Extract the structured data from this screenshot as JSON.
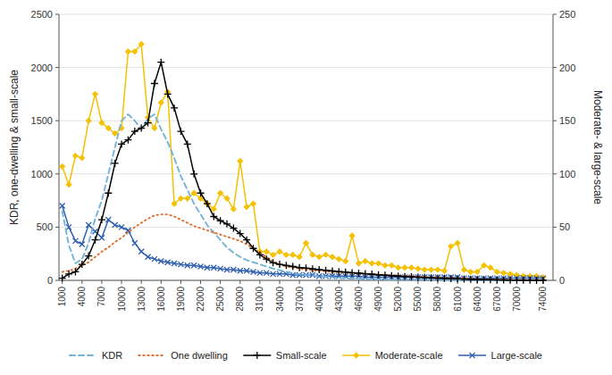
{
  "chart_data": {
    "type": "line",
    "ylabel": "KDR, one-dwelling & small-scale",
    "y2label": "Moderate- & large-scale",
    "x": [
      1000,
      2000,
      3000,
      4000,
      5000,
      6000,
      7000,
      8000,
      9000,
      10000,
      11000,
      12000,
      13000,
      14000,
      15000,
      16000,
      17000,
      18000,
      19000,
      20000,
      21000,
      22000,
      23000,
      24000,
      25000,
      26000,
      27000,
      28000,
      29000,
      30000,
      31000,
      32000,
      33000,
      34000,
      35000,
      36000,
      37000,
      38000,
      39000,
      40000,
      41000,
      42000,
      43000,
      44000,
      45000,
      46000,
      47000,
      48000,
      49000,
      50000,
      51000,
      52000,
      53000,
      54000,
      55000,
      56000,
      57000,
      58000,
      59000,
      60000,
      61000,
      62000,
      63000,
      64000,
      65000,
      66000,
      67000,
      68000,
      69000,
      70000,
      71000,
      72000,
      73000,
      74000
    ],
    "xlim": [
      500,
      75500
    ],
    "xticks": [
      1000,
      4000,
      7000,
      10000,
      13000,
      16000,
      19000,
      22000,
      25000,
      28000,
      31000,
      34000,
      37000,
      40000,
      43000,
      46000,
      49000,
      52000,
      55000,
      58000,
      61000,
      64000,
      67000,
      70000,
      74000
    ],
    "ylim": [
      0,
      2500
    ],
    "yticks": [
      0,
      500,
      1000,
      1500,
      2000,
      2500
    ],
    "y2lim": [
      0,
      250
    ],
    "y2ticks": [
      0,
      50,
      100,
      150,
      200,
      250
    ],
    "grid": true,
    "legend": "bottom",
    "series": [
      {
        "name": "KDR",
        "color": "#74b3d8",
        "line_style": "dashed",
        "values": [
          650,
          330,
          160,
          200,
          350,
          580,
          750,
          1000,
          1250,
          1500,
          1560,
          1500,
          1420,
          1520,
          1560,
          1420,
          1300,
          1150,
          980,
          850,
          720,
          620,
          520,
          450,
          380,
          310,
          260,
          220,
          190,
          170,
          150,
          130,
          110,
          95,
          80,
          68,
          58,
          50,
          44,
          38,
          33,
          28,
          24,
          20,
          17,
          15,
          13,
          11,
          10,
          8,
          7,
          6,
          5,
          5,
          4,
          4,
          3,
          3,
          2,
          2,
          2,
          1,
          1,
          1,
          1,
          1,
          0,
          0,
          0,
          0,
          0,
          0,
          0,
          0
        ]
      },
      {
        "name": "One dwelling",
        "color": "#e07030",
        "line_style": "dotted",
        "values": [
          80,
          90,
          110,
          140,
          170,
          220,
          270,
          310,
          360,
          400,
          450,
          500,
          540,
          580,
          610,
          620,
          620,
          600,
          570,
          540,
          510,
          490,
          470,
          450,
          430,
          410,
          390,
          370,
          340,
          300,
          260,
          220,
          180,
          150,
          130,
          120,
          110,
          100,
          95,
          90,
          85,
          80,
          75,
          72,
          68,
          65,
          62,
          58,
          55,
          52,
          48,
          45,
          42,
          39,
          36,
          33,
          30,
          28,
          25,
          22,
          20,
          18,
          15,
          13,
          11,
          9,
          8,
          7,
          6,
          5,
          4,
          3,
          3,
          2
        ]
      },
      {
        "name": "Small-scale",
        "color": "#000000",
        "line_style": "solid",
        "marker": "plus",
        "values": [
          20,
          60,
          80,
          150,
          230,
          380,
          570,
          820,
          1100,
          1280,
          1320,
          1400,
          1430,
          1480,
          1850,
          2050,
          1750,
          1620,
          1400,
          1280,
          1000,
          820,
          720,
          600,
          560,
          530,
          490,
          440,
          380,
          300,
          240,
          200,
          165,
          150,
          140,
          130,
          120,
          115,
          108,
          100,
          95,
          88,
          82,
          78,
          72,
          68,
          62,
          58,
          52,
          48,
          44,
          40,
          36,
          33,
          30,
          27,
          24,
          21,
          18,
          16,
          14,
          12,
          10,
          8,
          7,
          6,
          5,
          4,
          3,
          3,
          2,
          2,
          1,
          1
        ]
      },
      {
        "name": "Moderate-scale",
        "color": "#f5c000",
        "line_style": "solid",
        "marker": "diamond",
        "axis": "y2",
        "values": [
          107,
          90,
          117,
          115,
          150,
          175,
          148,
          143,
          138,
          143,
          215,
          215,
          222,
          153,
          143,
          167,
          177,
          72,
          77,
          77,
          82,
          77,
          72,
          67,
          82,
          77,
          67,
          112,
          69,
          72,
          27,
          27,
          24,
          27,
          24,
          24,
          22,
          35,
          24,
          22,
          24,
          22,
          20,
          18,
          42,
          16,
          18,
          16,
          16,
          14,
          14,
          12,
          12,
          12,
          11,
          10,
          10,
          10,
          9,
          32,
          35,
          10,
          8,
          8,
          14,
          12,
          8,
          7,
          6,
          5,
          4,
          4,
          4,
          3
        ]
      },
      {
        "name": "Large-scale",
        "color": "#3060b0",
        "line_style": "solid",
        "marker": "x",
        "axis": "y2",
        "values": [
          70,
          50,
          37,
          34,
          52,
          46,
          40,
          57,
          52,
          50,
          47,
          35,
          27,
          22,
          20,
          18,
          17,
          16,
          15,
          14,
          14,
          13,
          12,
          12,
          11,
          10,
          10,
          9,
          9,
          8,
          7,
          7,
          6,
          6,
          6,
          5,
          5,
          5,
          5,
          4,
          4,
          4,
          4,
          4,
          4,
          4,
          3,
          3,
          3,
          3,
          3,
          3,
          3,
          3,
          3,
          3,
          3,
          3,
          3,
          3,
          3,
          2,
          2,
          2,
          2,
          2,
          2,
          2,
          2,
          2,
          2,
          2,
          2,
          2
        ]
      }
    ]
  }
}
